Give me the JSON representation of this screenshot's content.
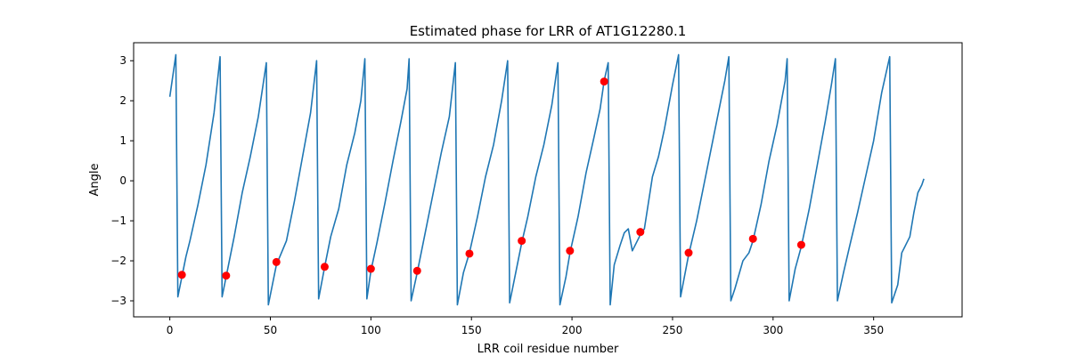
{
  "chart_data": {
    "type": "line",
    "title": "Estimated phase for LRR of AT1G12280.1",
    "xlabel": "LRR coil residue number",
    "ylabel": "Angle",
    "xlim": [
      -18,
      394
    ],
    "ylim": [
      -3.4,
      3.45
    ],
    "xticks": [
      0,
      50,
      100,
      150,
      200,
      250,
      300,
      350
    ],
    "yticks": [
      -3,
      -2,
      -1,
      0,
      1,
      2,
      3
    ],
    "grid": false,
    "colors": {
      "line": "#1f77b4",
      "markers": "#ff0000"
    },
    "series": [
      {
        "kind": "line",
        "points": [
          [
            0,
            2.1
          ],
          [
            3,
            3.15
          ],
          [
            4,
            -2.9
          ],
          [
            6,
            -2.4
          ],
          [
            8,
            -1.9
          ],
          [
            10,
            -1.5
          ],
          [
            14,
            -0.6
          ],
          [
            18,
            0.4
          ],
          [
            22,
            1.7
          ],
          [
            25,
            3.1
          ],
          [
            26,
            -2.9
          ],
          [
            28,
            -2.4
          ],
          [
            32,
            -1.4
          ],
          [
            36,
            -0.3
          ],
          [
            40,
            0.6
          ],
          [
            44,
            1.6
          ],
          [
            48,
            2.95
          ],
          [
            49,
            -3.1
          ],
          [
            51,
            -2.6
          ],
          [
            53,
            -2.1
          ],
          [
            58,
            -1.5
          ],
          [
            62,
            -0.5
          ],
          [
            66,
            0.6
          ],
          [
            70,
            1.7
          ],
          [
            73,
            3.0
          ],
          [
            74,
            -2.95
          ],
          [
            77,
            -2.15
          ],
          [
            80,
            -1.4
          ],
          [
            84,
            -0.7
          ],
          [
            88,
            0.4
          ],
          [
            92,
            1.2
          ],
          [
            95,
            2.0
          ],
          [
            97,
            3.05
          ],
          [
            98,
            -2.95
          ],
          [
            100,
            -2.25
          ],
          [
            103,
            -1.55
          ],
          [
            107,
            -0.55
          ],
          [
            111,
            0.5
          ],
          [
            115,
            1.5
          ],
          [
            118,
            2.3
          ],
          [
            119,
            3.05
          ],
          [
            120,
            -3.0
          ],
          [
            123,
            -2.3
          ],
          [
            127,
            -1.3
          ],
          [
            131,
            -0.3
          ],
          [
            135,
            0.7
          ],
          [
            139,
            1.6
          ],
          [
            142,
            2.95
          ],
          [
            143,
            -3.1
          ],
          [
            146,
            -2.3
          ],
          [
            149,
            -1.8
          ],
          [
            153,
            -0.9
          ],
          [
            157,
            0.1
          ],
          [
            161,
            0.9
          ],
          [
            165,
            2.0
          ],
          [
            168,
            3.0
          ],
          [
            169,
            -3.05
          ],
          [
            172,
            -2.3
          ],
          [
            175,
            -1.55
          ],
          [
            178,
            -0.9
          ],
          [
            182,
            0.1
          ],
          [
            186,
            0.9
          ],
          [
            190,
            1.9
          ],
          [
            193,
            2.95
          ],
          [
            194,
            -3.1
          ],
          [
            197,
            -2.4
          ],
          [
            199,
            -1.8
          ],
          [
            203,
            -0.9
          ],
          [
            207,
            0.2
          ],
          [
            211,
            1.1
          ],
          [
            214,
            1.8
          ],
          [
            216,
            2.5
          ],
          [
            218,
            2.95
          ],
          [
            219,
            -3.1
          ],
          [
            221,
            -2.1
          ],
          [
            224,
            -1.6
          ],
          [
            226,
            -1.3
          ],
          [
            228,
            -1.2
          ],
          [
            230,
            -1.75
          ],
          [
            232,
            -1.55
          ],
          [
            234,
            -1.35
          ],
          [
            236,
            -1.2
          ],
          [
            240,
            0.1
          ],
          [
            243,
            0.6
          ],
          [
            246,
            1.3
          ],
          [
            250,
            2.4
          ],
          [
            253,
            3.15
          ],
          [
            254,
            -2.9
          ],
          [
            258,
            -1.85
          ],
          [
            262,
            -1.0
          ],
          [
            266,
            0.0
          ],
          [
            270,
            1.0
          ],
          [
            274,
            2.0
          ],
          [
            276,
            2.5
          ],
          [
            278,
            3.1
          ],
          [
            279,
            -3.0
          ],
          [
            281,
            -2.7
          ],
          [
            285,
            -2.0
          ],
          [
            288,
            -1.8
          ],
          [
            290,
            -1.5
          ],
          [
            294,
            -0.6
          ],
          [
            298,
            0.5
          ],
          [
            302,
            1.4
          ],
          [
            306,
            2.5
          ],
          [
            307,
            3.05
          ],
          [
            308,
            -3.0
          ],
          [
            311,
            -2.2
          ],
          [
            314,
            -1.65
          ],
          [
            318,
            -0.7
          ],
          [
            322,
            0.4
          ],
          [
            326,
            1.5
          ],
          [
            329,
            2.4
          ],
          [
            331,
            3.05
          ],
          [
            332,
            -3.0
          ],
          [
            335,
            -2.3
          ],
          [
            338,
            -1.65
          ],
          [
            342,
            -0.8
          ],
          [
            346,
            0.1
          ],
          [
            350,
            1.0
          ],
          [
            354,
            2.2
          ],
          [
            358,
            3.1
          ],
          [
            359,
            -3.05
          ],
          [
            362,
            -2.6
          ],
          [
            364,
            -1.8
          ],
          [
            366,
            -1.6
          ],
          [
            368,
            -1.4
          ],
          [
            370,
            -0.8
          ],
          [
            372,
            -0.3
          ],
          [
            374,
            -0.1
          ],
          [
            375,
            0.05
          ]
        ]
      },
      {
        "kind": "markers",
        "points": [
          [
            6,
            -2.35
          ],
          [
            28,
            -2.37
          ],
          [
            53,
            -2.03
          ],
          [
            77,
            -2.15
          ],
          [
            100,
            -2.2
          ],
          [
            123,
            -2.25
          ],
          [
            149,
            -1.82
          ],
          [
            175,
            -1.5
          ],
          [
            199,
            -1.75
          ],
          [
            216,
            2.48
          ],
          [
            234,
            -1.28
          ],
          [
            258,
            -1.8
          ],
          [
            290,
            -1.45
          ],
          [
            314,
            -1.6
          ]
        ]
      }
    ]
  }
}
